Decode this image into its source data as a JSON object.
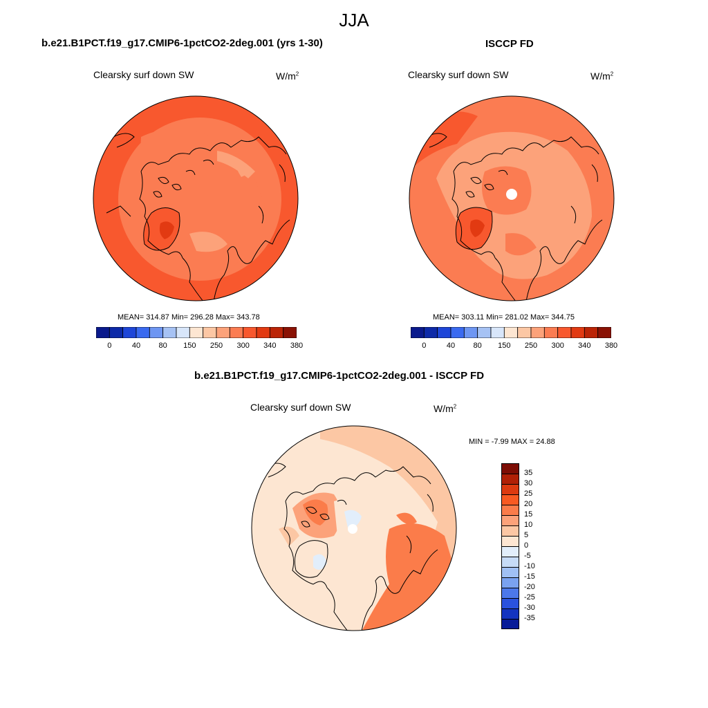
{
  "title": "JJA",
  "panels": [
    {
      "title": "b.e21.B1PCT.f19_g17.CMIP6-1pctCO2-2deg.001 (yrs 1-30)",
      "variable": "Clearsky surf down SW",
      "units_base": "W/m",
      "units_exp": "2",
      "stats": "MEAN= 314.87  Min= 296.28  Max= 343.78"
    },
    {
      "title": "ISCCP FD",
      "variable": "Clearsky surf down SW",
      "units_base": "W/m",
      "units_exp": "2",
      "stats": "MEAN= 303.11  Min= 281.02  Max= 344.75"
    },
    {
      "title": "b.e21.B1PCT.f19_g17.CMIP6-1pctCO2-2deg.001 - ISCCP FD",
      "variable": "Clearsky surf down SW",
      "units_base": "W/m",
      "units_exp": "2",
      "stats": "MIN =  -7.99 MAX =  24.88"
    }
  ],
  "colorbar_abs": {
    "colors": [
      "#0a1a8c",
      "#0d2aa8",
      "#1e46d8",
      "#3a6af0",
      "#6e96f2",
      "#a6c2f4",
      "#d8e6fa",
      "#fde6d2",
      "#fcc7a4",
      "#fca27a",
      "#fb7c52",
      "#f8582e",
      "#e23a12",
      "#bb2406",
      "#8a1204"
    ],
    "labels": [
      "0",
      "40",
      "80",
      "150",
      "250",
      "300",
      "340",
      "380"
    ]
  },
  "colorbar_diff": {
    "colors": [
      "#7d0d04",
      "#b02006",
      "#dc3a10",
      "#f85a22",
      "#fb7c4a",
      "#fca27a",
      "#fcc7a4",
      "#fde6d2",
      "#e2eefb",
      "#c6dbf7",
      "#a0c0f4",
      "#7aa2f0",
      "#4c78ea",
      "#2a52de",
      "#1434c0",
      "#081c98"
    ],
    "labels": [
      "35",
      "30",
      "25",
      "20",
      "15",
      "10",
      "5",
      "0",
      "-5",
      "-10",
      "-15",
      "-20",
      "-25",
      "-30",
      "-35"
    ]
  }
}
